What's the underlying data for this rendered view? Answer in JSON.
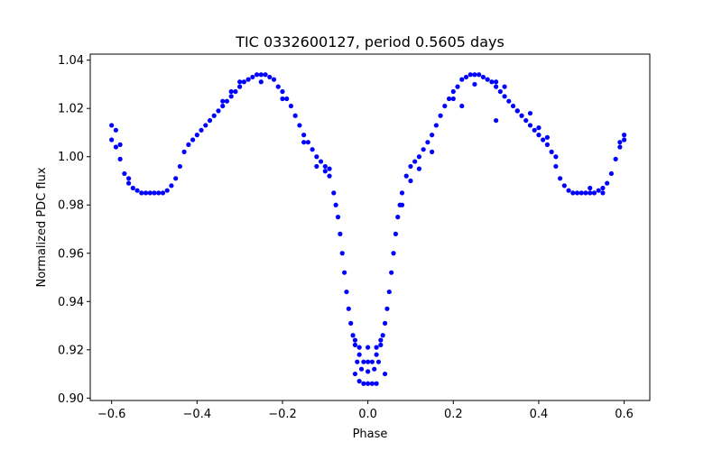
{
  "chart_data": {
    "type": "scatter",
    "title": "TIC 0332600127, period 0.5605 days",
    "xlabel": "Phase",
    "ylabel": "Normalized PDC flux",
    "xlim": [
      -0.65,
      0.66
    ],
    "ylim": [
      0.899,
      1.0425
    ],
    "xticks": [
      -0.6,
      -0.4,
      -0.2,
      0.0,
      0.2,
      0.4,
      0.6
    ],
    "xtick_labels": [
      "−0.6",
      "−0.4",
      "−0.2",
      "0.0",
      "0.2",
      "0.4",
      "0.6"
    ],
    "yticks": [
      0.9,
      0.92,
      0.94,
      0.96,
      0.98,
      1.0,
      1.02,
      1.04
    ],
    "ytick_labels": [
      "0.90",
      "0.92",
      "0.94",
      "0.96",
      "0.98",
      "1.00",
      "1.02",
      "1.04"
    ],
    "grid": false,
    "marker_color": "#0000ff",
    "series": [
      {
        "name": "",
        "color": "#0000ff",
        "points": [
          [
            -0.6,
            1.007
          ],
          [
            -0.59,
            1.004
          ],
          [
            -0.58,
            0.999
          ],
          [
            -0.57,
            0.993
          ],
          [
            -0.56,
            0.989
          ],
          [
            -0.55,
            0.987
          ],
          [
            -0.54,
            0.986
          ],
          [
            -0.53,
            0.985
          ],
          [
            -0.52,
            0.985
          ],
          [
            -0.51,
            0.985
          ],
          [
            -0.5,
            0.985
          ],
          [
            -0.49,
            0.985
          ],
          [
            -0.48,
            0.985
          ],
          [
            -0.47,
            0.986
          ],
          [
            -0.46,
            0.988
          ],
          [
            -0.45,
            0.991
          ],
          [
            -0.44,
            0.996
          ],
          [
            -0.43,
            1.002
          ],
          [
            -0.42,
            1.005
          ],
          [
            -0.41,
            1.007
          ],
          [
            -0.4,
            1.009
          ],
          [
            -0.39,
            1.011
          ],
          [
            -0.38,
            1.013
          ],
          [
            -0.37,
            1.015
          ],
          [
            -0.36,
            1.017
          ],
          [
            -0.35,
            1.019
          ],
          [
            -0.34,
            1.021
          ],
          [
            -0.33,
            1.023
          ],
          [
            -0.32,
            1.025
          ],
          [
            -0.31,
            1.027
          ],
          [
            -0.3,
            1.029
          ],
          [
            -0.29,
            1.031
          ],
          [
            -0.28,
            1.032
          ],
          [
            -0.27,
            1.033
          ],
          [
            -0.26,
            1.034
          ],
          [
            -0.25,
            1.034
          ],
          [
            -0.24,
            1.034
          ],
          [
            -0.23,
            1.033
          ],
          [
            -0.22,
            1.032
          ],
          [
            -0.21,
            1.029
          ],
          [
            -0.2,
            1.027
          ],
          [
            -0.19,
            1.024
          ],
          [
            -0.18,
            1.021
          ],
          [
            -0.17,
            1.017
          ],
          [
            -0.16,
            1.013
          ],
          [
            -0.15,
            1.009
          ],
          [
            -0.14,
            1.006
          ],
          [
            -0.13,
            1.003
          ],
          [
            -0.12,
            1.0
          ],
          [
            -0.11,
            0.998
          ],
          [
            -0.1,
            0.996
          ],
          [
            -0.09,
            0.992
          ],
          [
            -0.08,
            0.985
          ],
          [
            -0.075,
            0.98
          ],
          [
            -0.07,
            0.975
          ],
          [
            -0.065,
            0.968
          ],
          [
            -0.06,
            0.96
          ],
          [
            -0.055,
            0.952
          ],
          [
            -0.05,
            0.944
          ],
          [
            -0.045,
            0.937
          ],
          [
            -0.04,
            0.931
          ],
          [
            -0.035,
            0.926
          ],
          [
            -0.03,
            0.922
          ],
          [
            -0.02,
            0.918
          ],
          [
            -0.01,
            0.915
          ],
          [
            0.0,
            0.915
          ],
          [
            0.01,
            0.915
          ],
          [
            0.02,
            0.918
          ],
          [
            0.03,
            0.922
          ],
          [
            0.035,
            0.926
          ],
          [
            0.04,
            0.931
          ],
          [
            0.045,
            0.937
          ],
          [
            0.05,
            0.944
          ],
          [
            0.055,
            0.952
          ],
          [
            0.06,
            0.96
          ],
          [
            0.065,
            0.968
          ],
          [
            0.07,
            0.975
          ],
          [
            0.075,
            0.98
          ],
          [
            0.08,
            0.985
          ],
          [
            0.09,
            0.992
          ],
          [
            0.1,
            0.996
          ],
          [
            0.11,
            0.998
          ],
          [
            0.12,
            1.0
          ],
          [
            0.13,
            1.003
          ],
          [
            0.14,
            1.006
          ],
          [
            0.15,
            1.009
          ],
          [
            0.16,
            1.013
          ],
          [
            0.17,
            1.017
          ],
          [
            0.18,
            1.021
          ],
          [
            0.19,
            1.024
          ],
          [
            0.2,
            1.027
          ],
          [
            0.21,
            1.029
          ],
          [
            0.22,
            1.032
          ],
          [
            0.23,
            1.033
          ],
          [
            0.24,
            1.034
          ],
          [
            0.25,
            1.034
          ],
          [
            0.26,
            1.034
          ],
          [
            0.27,
            1.033
          ],
          [
            0.28,
            1.032
          ],
          [
            0.29,
            1.031
          ],
          [
            0.3,
            1.029
          ],
          [
            0.31,
            1.027
          ],
          [
            0.32,
            1.025
          ],
          [
            0.33,
            1.023
          ],
          [
            0.34,
            1.021
          ],
          [
            0.35,
            1.019
          ],
          [
            0.36,
            1.017
          ],
          [
            0.37,
            1.015
          ],
          [
            0.38,
            1.013
          ],
          [
            0.39,
            1.011
          ],
          [
            0.4,
            1.009
          ],
          [
            0.41,
            1.007
          ],
          [
            0.42,
            1.005
          ],
          [
            0.43,
            1.002
          ],
          [
            0.44,
            0.996
          ],
          [
            0.45,
            0.991
          ],
          [
            0.46,
            0.988
          ],
          [
            0.47,
            0.986
          ],
          [
            0.48,
            0.985
          ],
          [
            0.49,
            0.985
          ],
          [
            0.5,
            0.985
          ],
          [
            0.51,
            0.985
          ],
          [
            0.52,
            0.985
          ],
          [
            0.53,
            0.985
          ],
          [
            0.54,
            0.986
          ],
          [
            0.55,
            0.987
          ],
          [
            0.56,
            0.989
          ],
          [
            0.57,
            0.993
          ],
          [
            0.58,
            0.999
          ],
          [
            0.59,
            1.004
          ],
          [
            0.6,
            1.007
          ],
          [
            -0.6,
            1.013
          ],
          [
            -0.59,
            1.011
          ],
          [
            -0.58,
            1.005
          ],
          [
            -0.56,
            0.991
          ],
          [
            -0.34,
            1.023
          ],
          [
            -0.32,
            1.027
          ],
          [
            -0.3,
            1.031
          ],
          [
            -0.25,
            1.031
          ],
          [
            -0.2,
            1.024
          ],
          [
            -0.15,
            1.006
          ],
          [
            -0.12,
            0.996
          ],
          [
            -0.1,
            0.994
          ],
          [
            -0.09,
            0.995
          ],
          [
            -0.03,
            0.924
          ],
          [
            -0.02,
            0.921
          ],
          [
            0.0,
            0.921
          ],
          [
            0.02,
            0.921
          ],
          [
            0.03,
            0.924
          ],
          [
            -0.025,
            0.915
          ],
          [
            -0.015,
            0.912
          ],
          [
            0.0,
            0.911
          ],
          [
            0.015,
            0.912
          ],
          [
            0.025,
            0.915
          ],
          [
            -0.03,
            0.91
          ],
          [
            -0.02,
            0.907
          ],
          [
            -0.01,
            0.906
          ],
          [
            0.0,
            0.906
          ],
          [
            0.01,
            0.906
          ],
          [
            0.02,
            0.906
          ],
          [
            0.04,
            0.91
          ],
          [
            0.08,
            0.98
          ],
          [
            0.1,
            0.99
          ],
          [
            0.12,
            0.995
          ],
          [
            0.15,
            1.002
          ],
          [
            0.2,
            1.024
          ],
          [
            0.22,
            1.021
          ],
          [
            0.25,
            1.03
          ],
          [
            0.3,
            1.031
          ],
          [
            0.32,
            1.029
          ],
          [
            0.3,
            1.015
          ],
          [
            0.35,
            1.019
          ],
          [
            0.38,
            1.018
          ],
          [
            0.4,
            1.012
          ],
          [
            0.42,
            1.008
          ],
          [
            0.44,
            1.0
          ],
          [
            0.6,
            1.009
          ],
          [
            0.59,
            1.006
          ],
          [
            0.55,
            0.985
          ],
          [
            0.52,
            0.987
          ]
        ]
      }
    ]
  }
}
